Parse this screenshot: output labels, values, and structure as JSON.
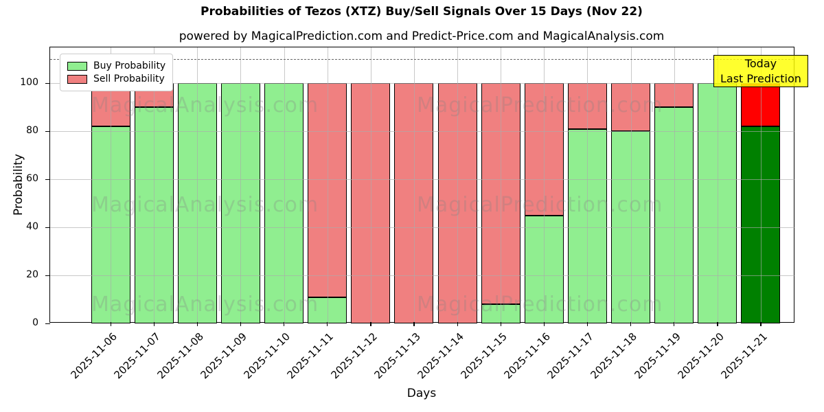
{
  "chart_data": {
    "type": "bar",
    "stacked": true,
    "title": "Probabilities of Tezos (XTZ) Buy/Sell Signals Over 15 Days (Nov 22)",
    "subtitle": "powered by MagicalPrediction.com and Predict-Price.com and MagicalAnalysis.com",
    "xlabel": "Days",
    "ylabel": "Probability",
    "categories": [
      "2025-11-06",
      "2025-11-07",
      "2025-11-08",
      "2025-11-09",
      "2025-11-10",
      "2025-11-11",
      "2025-11-12",
      "2025-11-13",
      "2025-11-14",
      "2025-11-15",
      "2025-11-16",
      "2025-11-17",
      "2025-11-18",
      "2025-11-19",
      "2025-11-20",
      "2025-11-21"
    ],
    "series": [
      {
        "name": "Buy Probability",
        "color": "#90EE90",
        "values": [
          82,
          90,
          100,
          100,
          100,
          11,
          0,
          0,
          0,
          8,
          45,
          81,
          80,
          90,
          100,
          82
        ]
      },
      {
        "name": "Sell Probability",
        "color": "#F08080",
        "values": [
          18,
          10,
          0,
          0,
          0,
          89,
          100,
          100,
          100,
          92,
          55,
          19,
          20,
          10,
          0,
          18
        ]
      }
    ],
    "today_bar_index": 15,
    "today_bar_colors": {
      "buy": "#008000",
      "sell": "#FF0000"
    },
    "bar_edge_color": "#000000",
    "ylim": [
      0,
      115
    ],
    "yticks": [
      0,
      20,
      40,
      60,
      80,
      100
    ],
    "dashed_line_y": 110,
    "grid": true,
    "legend_position": "upper left",
    "annotation": {
      "line1": "Today",
      "line2": "Last Prediction",
      "bg_color": "#FFFF00"
    },
    "watermarks": {
      "left": "MagicalAnalysis.com",
      "right": "MagicalPrediction.com"
    }
  }
}
